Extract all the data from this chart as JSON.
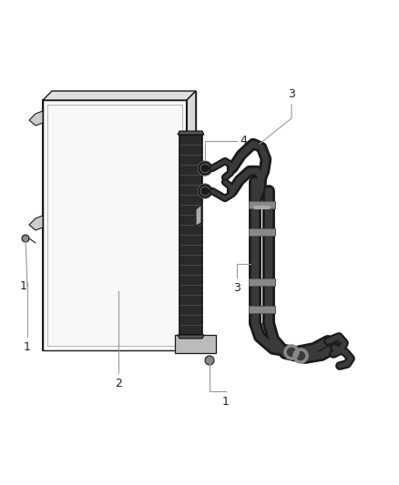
{
  "background_color": "#ffffff",
  "figsize": [
    4.38,
    5.33
  ],
  "dpi": 100,
  "lc": "#1a1a1a",
  "label_color": "#444444",
  "leader_color": "#999999"
}
